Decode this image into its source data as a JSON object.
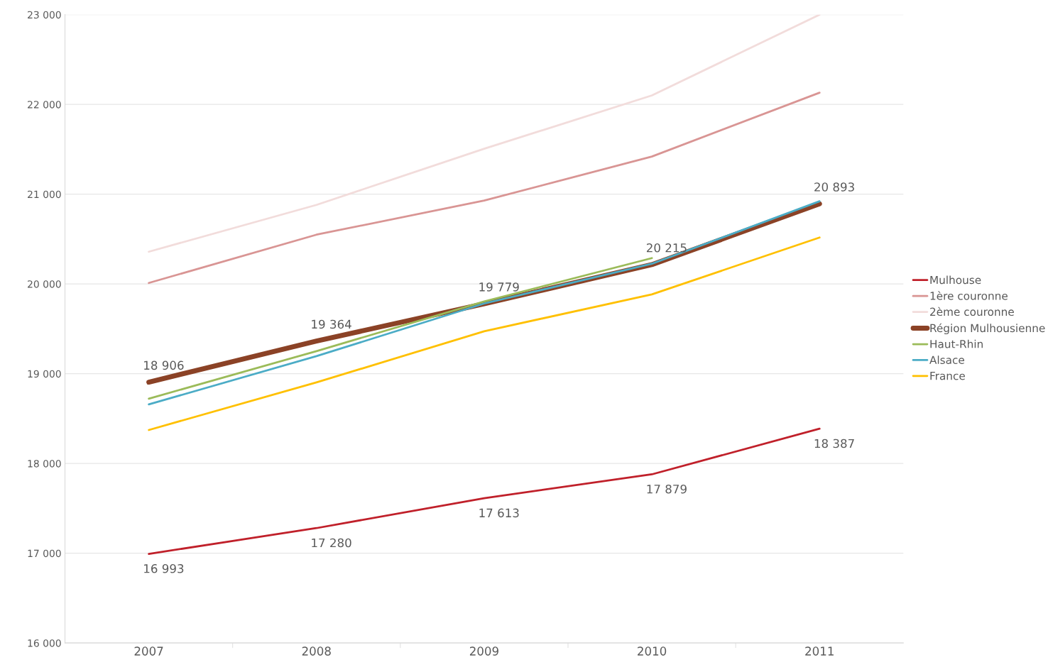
{
  "chart_data": {
    "type": "line",
    "categories": [
      "2007",
      "2008",
      "2009",
      "2010",
      "2011"
    ],
    "ylim": [
      16000,
      23000
    ],
    "yticks": [
      {
        "value": 16000,
        "label": "16 000"
      },
      {
        "value": 17000,
        "label": "17 000"
      },
      {
        "value": 18000,
        "label": "18 000"
      },
      {
        "value": 19000,
        "label": "19 000"
      },
      {
        "value": 20000,
        "label": "20 000"
      },
      {
        "value": 21000,
        "label": "21 000"
      },
      {
        "value": 22000,
        "label": "22 000"
      },
      {
        "value": 23000,
        "label": "23 000"
      }
    ],
    "grid": "y",
    "legend": "right",
    "marker": "none",
    "line_style": "solid",
    "series": [
      {
        "name": "Mulhouse",
        "color": "#c0202a",
        "values": [
          16993,
          17280,
          17613,
          17879,
          18387
        ],
        "value_labels": [
          "16 993",
          "17 280",
          "17 613",
          "17 879",
          "18 387"
        ]
      },
      {
        "name": "1ère couronne",
        "color": "#d99594",
        "values": [
          20011,
          20549,
          20929,
          21419,
          22131
        ]
      },
      {
        "name": "2ème couronne",
        "color": "#f2dcdb",
        "values": [
          20359,
          20881,
          21506,
          22100,
          23000
        ]
      },
      {
        "name": "Région Mulhousienne",
        "color": "#8b4226",
        "values": [
          18906,
          19364,
          19779,
          20215,
          20893
        ],
        "value_labels": [
          "18 906",
          "19 364",
          "19 779",
          "20 215",
          "20 893"
        ]
      },
      {
        "name": "Haut-Rhin",
        "color": "#9bbb59",
        "values": [
          18722,
          19252,
          19805,
          20288,
          null
        ]
      },
      {
        "name": "Alsace",
        "color": "#4bacc6",
        "values": [
          18658,
          19196,
          19782,
          20225,
          20921
        ]
      },
      {
        "name": "France",
        "color": "#ffc000",
        "values": [
          18373,
          18903,
          19473,
          19884,
          20517
        ]
      }
    ]
  }
}
